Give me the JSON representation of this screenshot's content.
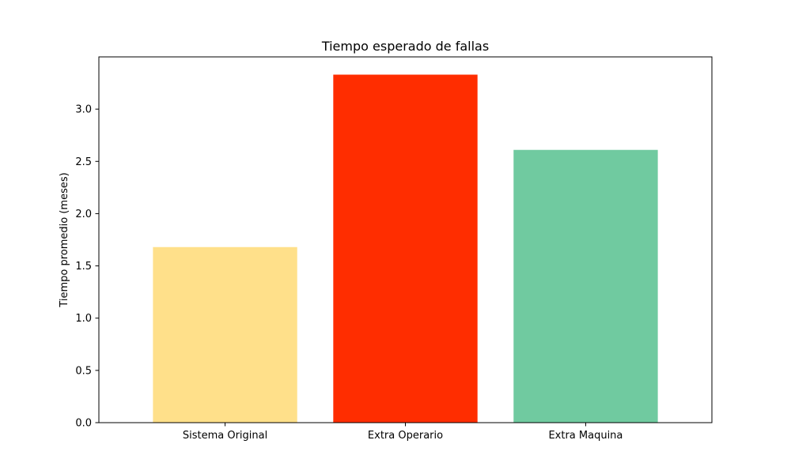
{
  "chart_data": {
    "type": "bar",
    "title": "Tiempo esperado de fallas",
    "xlabel": "",
    "ylabel": "Tiempo promedio (meses)",
    "categories": [
      "Sistema Original",
      "Extra Operario",
      "Extra Maquina"
    ],
    "values": [
      1.68,
      3.33,
      2.61
    ],
    "colors": [
      "#ffe08a",
      "#ff2d00",
      "#70caa0"
    ],
    "ylim": [
      0,
      3.5
    ],
    "yticks": [
      0.0,
      0.5,
      1.0,
      1.5,
      2.0,
      2.5,
      3.0
    ],
    "ytick_labels": [
      "0.0",
      "0.5",
      "1.0",
      "1.5",
      "2.0",
      "2.5",
      "3.0"
    ],
    "grid": false,
    "legend": "none"
  }
}
